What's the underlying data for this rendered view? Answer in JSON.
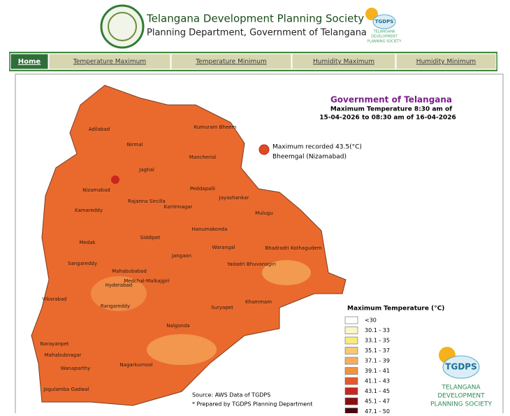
{
  "header": {
    "title": "Telangana Development Planning Society",
    "subtitle": "Planning Department, Government of Telangana",
    "logo": {
      "name": "TGDPS",
      "lines": [
        "TELANGANA",
        "DEVELOPMENT",
        "PLANNING SOCIETY"
      ]
    }
  },
  "nav": [
    "Home",
    "Temperature Maximum",
    "Temperature Minimum",
    "Humidity Maximum",
    "Humidity Minimum"
  ],
  "map": {
    "title": "Government of Telangana",
    "subtitle_lines": [
      "Maximum Temperature 8:30 am of",
      "15-04-2026 to 08:30 am of 16-04-2026"
    ],
    "annotation": [
      "Maximum recorded 43.5(°C)",
      "Bheemgal (Nizamabad)"
    ],
    "districts": [
      "Adilabad",
      "Kumuram Bheem",
      "Nirmal",
      "Mancherial",
      "Jagtial",
      "Nizamabad",
      "Peddapalli",
      "Rajanna Sircilla",
      "Jayashankar",
      "Kamareddy",
      "Karimnagar",
      "Mulugu",
      "Hanumakonda",
      "Medak",
      "Siddipet",
      "Warangal",
      "Bhadradri Kothagudem",
      "Jangaon",
      "Sangareddy",
      "Mahabubabad",
      "Medchal-Malkajgiri",
      "Yadadri Bhuvanagiri",
      "Hyderabad",
      "Vikarabad",
      "Rangareddy",
      "Suryapet",
      "Khammam",
      "Nalgonda",
      "Narayanpet",
      "Mahabubnagar",
      "Wanaparthy",
      "Nagarkurnool",
      "Jogulamba Gadwal"
    ],
    "legend": {
      "title": "Maximum Temperature (°C)",
      "items": [
        {
          "label": "<30",
          "color": "#ffffff"
        },
        {
          "label": "30.1 - 33",
          "color": "#fdf5c4"
        },
        {
          "label": "33.1 - 35",
          "color": "#fbe97c"
        },
        {
          "label": "35.1 - 37",
          "color": "#f8c872"
        },
        {
          "label": "37.1 - 39",
          "color": "#f5ae62"
        },
        {
          "label": "39.1 - 41",
          "color": "#f2933f"
        },
        {
          "label": "41.1 - 43",
          "color": "#e7592a"
        },
        {
          "label": "43.1 - 45",
          "color": "#c9261d"
        },
        {
          "label": "45.1 - 47",
          "color": "#8c0d10"
        },
        {
          "label": "47.1 - 50",
          "color": "#4a0707"
        }
      ]
    },
    "source": [
      "Source: AWS Data of TGDPS",
      "* Prepared by TGDPS Planning Department"
    ]
  }
}
